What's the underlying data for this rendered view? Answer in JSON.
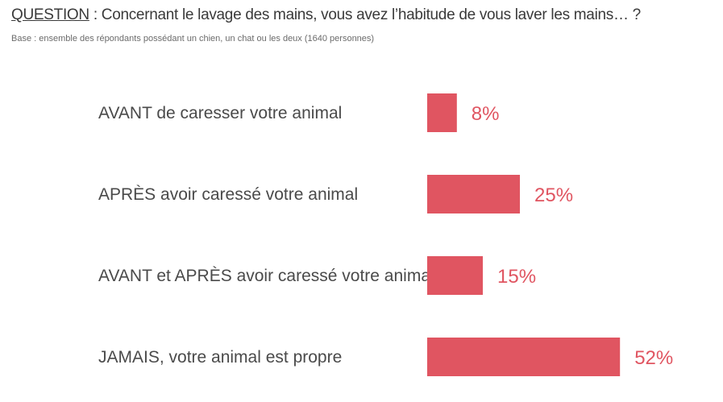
{
  "header": {
    "question_keyword": "QUESTION",
    "question_sep": " : ",
    "question_text": "Concernant le lavage des mains, vous avez l’habitude de vous laver les mains… ?",
    "base_text": "Base : ensemble des répondants possédant un chien, un chat ou les deux (1640 personnes)"
  },
  "colors": {
    "bar": "#e05561",
    "value_text": "#e05561"
  },
  "chart_data": {
    "type": "bar",
    "orientation": "horizontal",
    "categories": [
      "AVANT de caresser votre animal",
      "APRÈS avoir caressé votre animal",
      "AVANT et APRÈS avoir caressé votre animal",
      "JAMAIS, votre animal est propre"
    ],
    "values": [
      8,
      25,
      15,
      52
    ],
    "value_labels": [
      "8%",
      "25%",
      "15%",
      "52%"
    ],
    "unit": "%",
    "xlim": [
      0,
      100
    ],
    "grid": false,
    "legend": "none"
  }
}
